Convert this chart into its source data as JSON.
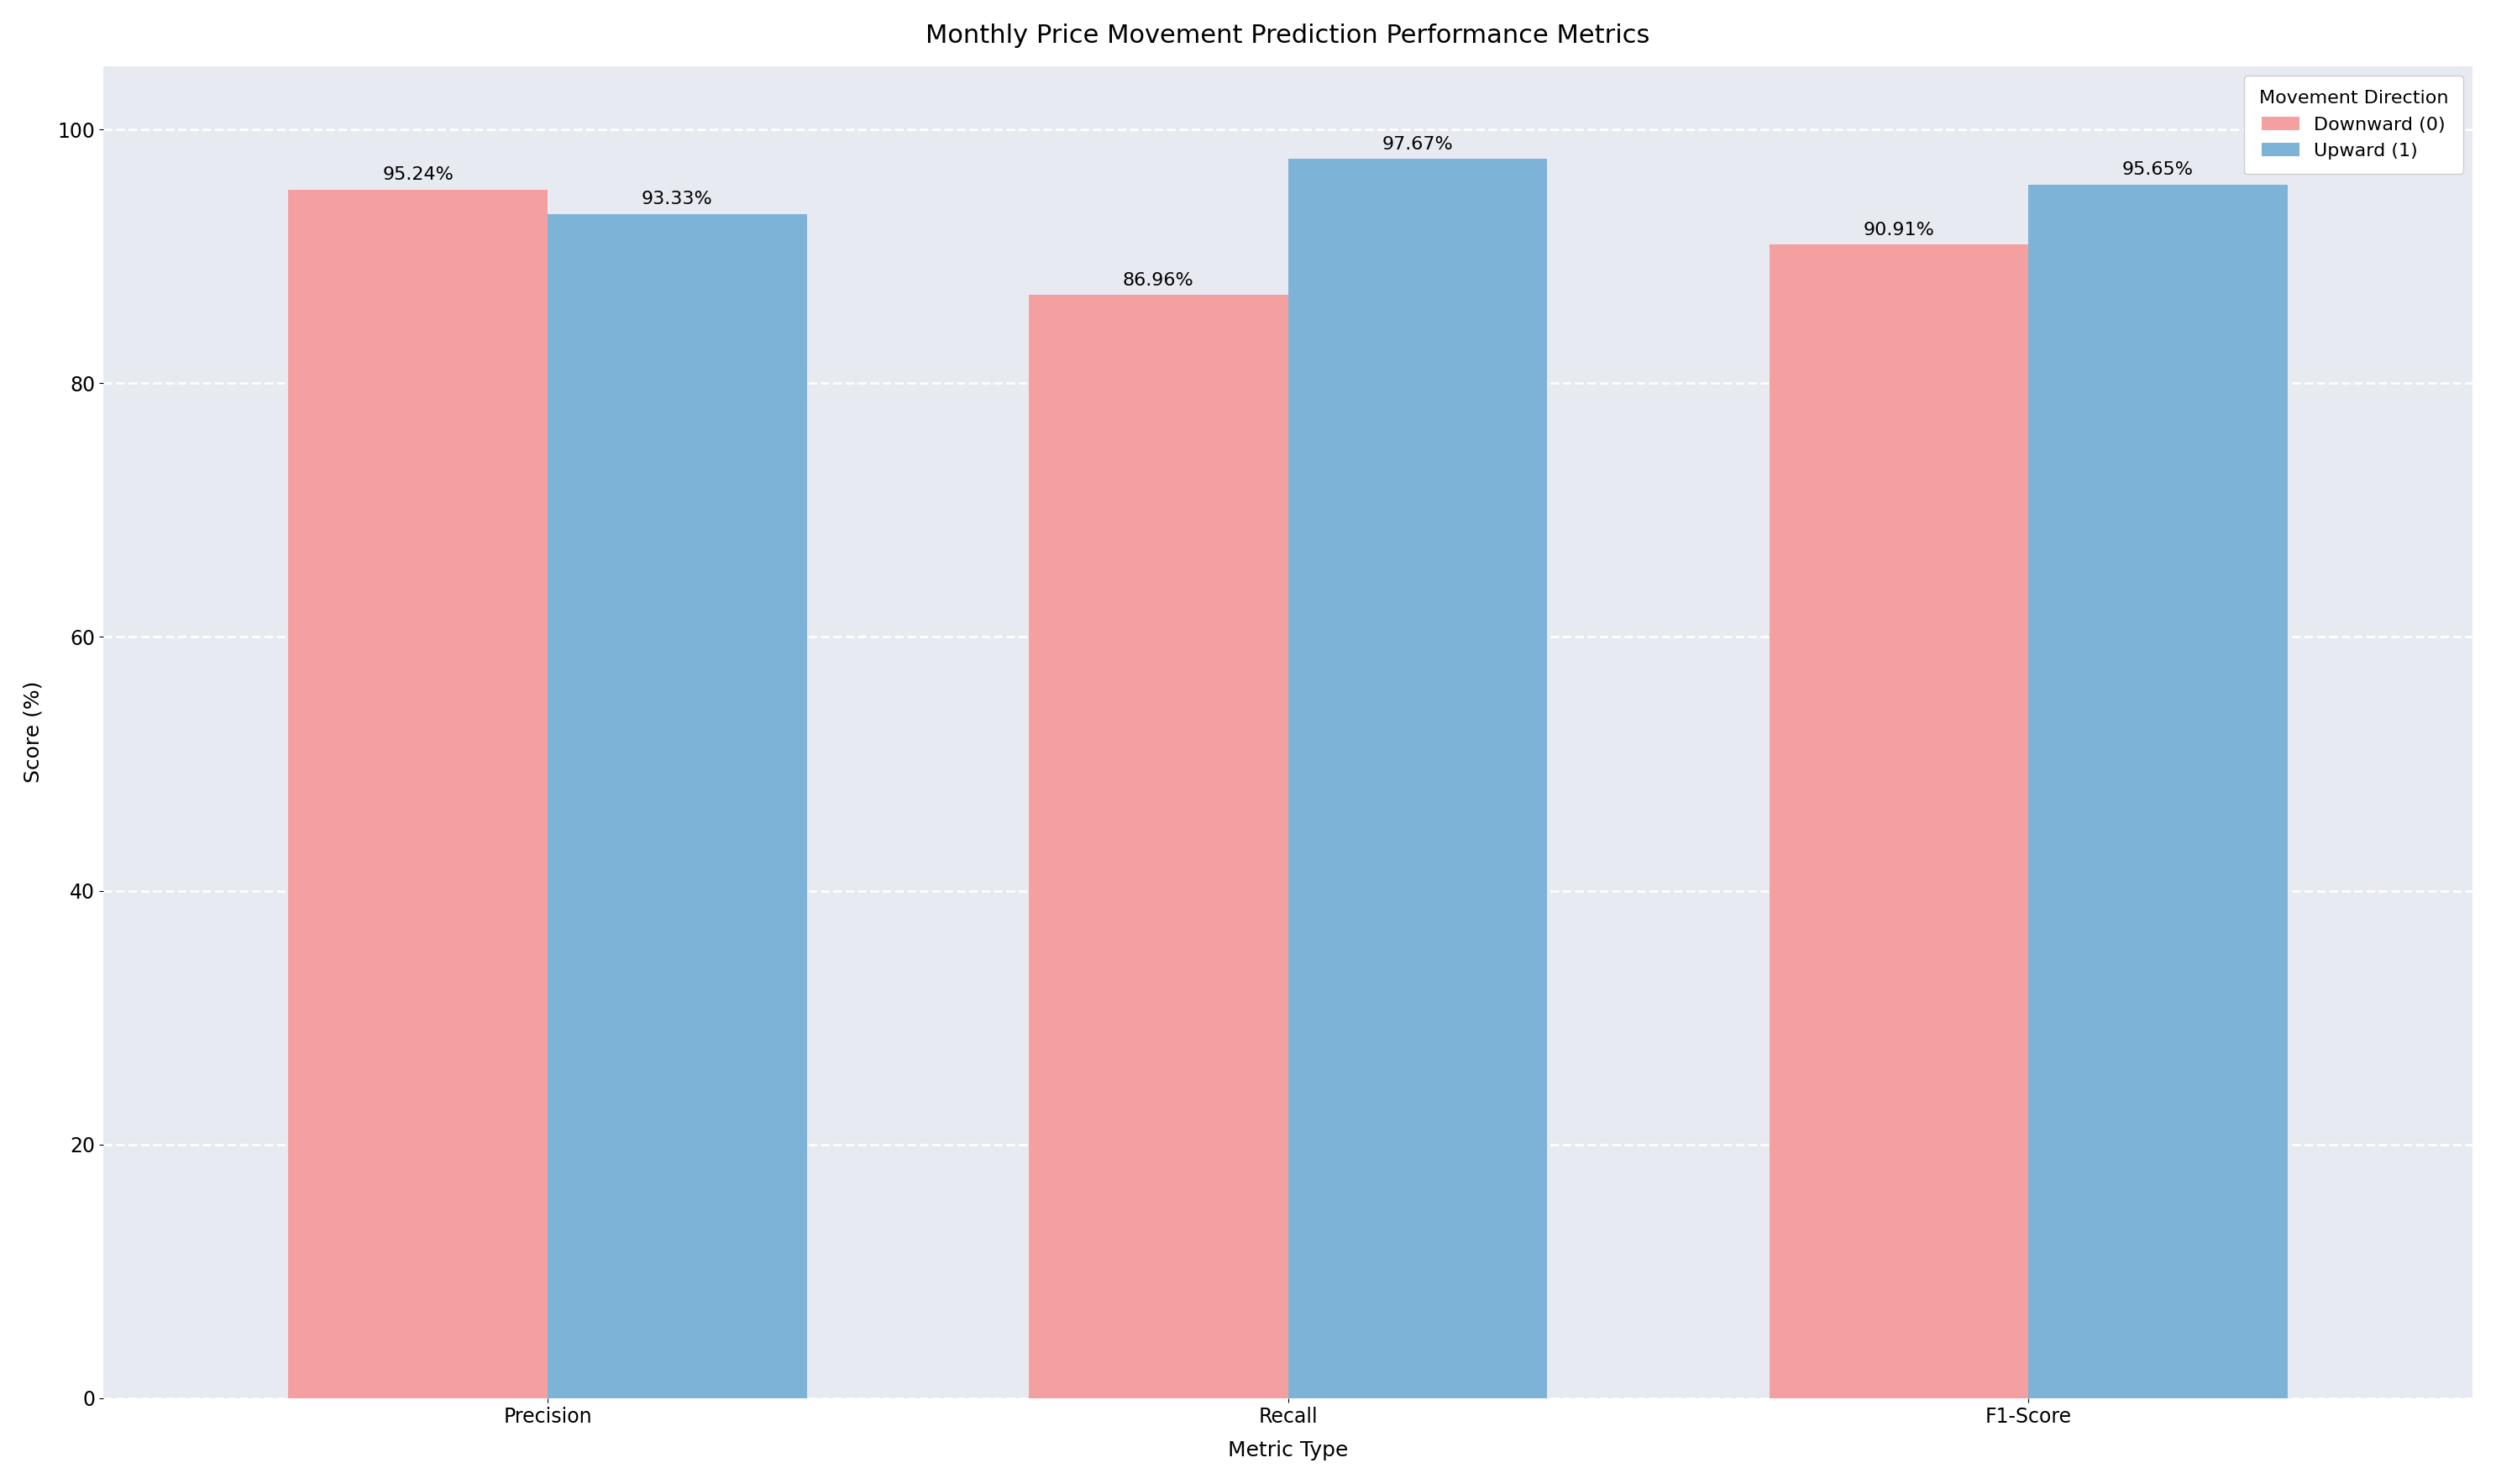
{
  "title": "Monthly Price Movement Prediction Performance Metrics",
  "xlabel": "Metric Type",
  "ylabel": "Score (%)",
  "legend_title": "Movement Direction",
  "categories": [
    "Precision",
    "Recall",
    "F1-Score"
  ],
  "downward_values": [
    95.24,
    86.96,
    90.91
  ],
  "upward_values": [
    93.33,
    97.67,
    95.65
  ],
  "downward_label": "Downward (0)",
  "upward_label": "Upward (1)",
  "downward_color": "#F4A0A0",
  "upward_color": "#7EB3D8",
  "bar_width": 0.35,
  "ylim": [
    0,
    105
  ],
  "yticks": [
    0,
    20,
    40,
    60,
    80,
    100
  ],
  "bg_color": "#E8EAF2",
  "grid_color": "white",
  "title_fontsize": 22,
  "label_fontsize": 18,
  "tick_fontsize": 17,
  "legend_fontsize": 16,
  "annotation_fontsize": 16
}
